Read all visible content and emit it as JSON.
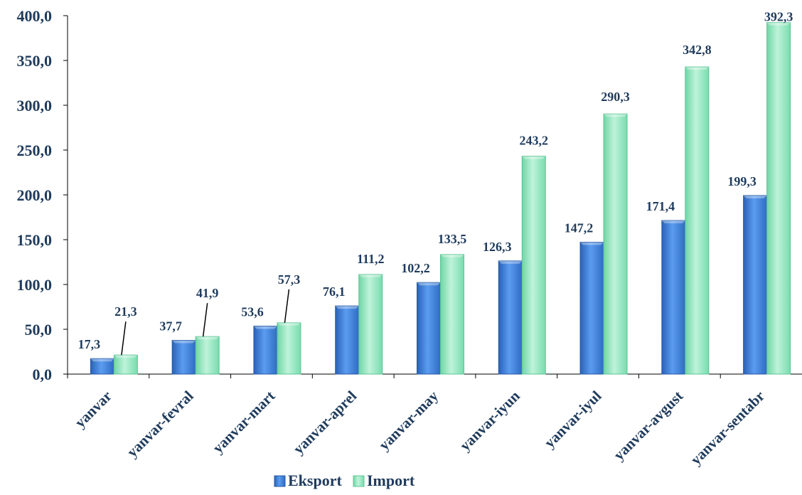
{
  "chart_data": {
    "type": "bar",
    "categories": [
      "yanvar",
      "yanvar-fevral",
      "yanvar-mart",
      "yanvar-aprel",
      "yanvar-may",
      "yanvar-iyun",
      "yanvar-iyul",
      "yanvar-avgust",
      "yanvar-sentabr"
    ],
    "series": [
      {
        "name": "Eksport",
        "values": [
          17.3,
          37.7,
          53.6,
          76.1,
          102.2,
          126.3,
          147.2,
          171.4,
          199.3
        ],
        "labels": [
          "17,3",
          "37,7",
          "53,6",
          "76,1",
          "102,2",
          "126,3",
          "147,2",
          "171,4",
          "199,3"
        ],
        "color": "#3a7fd5"
      },
      {
        "name": "Import",
        "values": [
          21.3,
          41.9,
          57.3,
          111.2,
          133.5,
          243.2,
          290.3,
          342.8,
          392.3
        ],
        "labels": [
          "21,3",
          "41,9",
          "57,3",
          "111,2",
          "133,5",
          "243,2",
          "290,3",
          "342,8",
          "392,3"
        ],
        "color": "#8fe3bd"
      }
    ],
    "yticks": [
      "0,0",
      "50,0",
      "100,0",
      "150,0",
      "200,0",
      "250,0",
      "300,0",
      "350,0",
      "400,0"
    ],
    "ylim": [
      0,
      400
    ],
    "grid": false,
    "legend": "bottom",
    "xlabel": "",
    "ylabel": "",
    "title": ""
  }
}
